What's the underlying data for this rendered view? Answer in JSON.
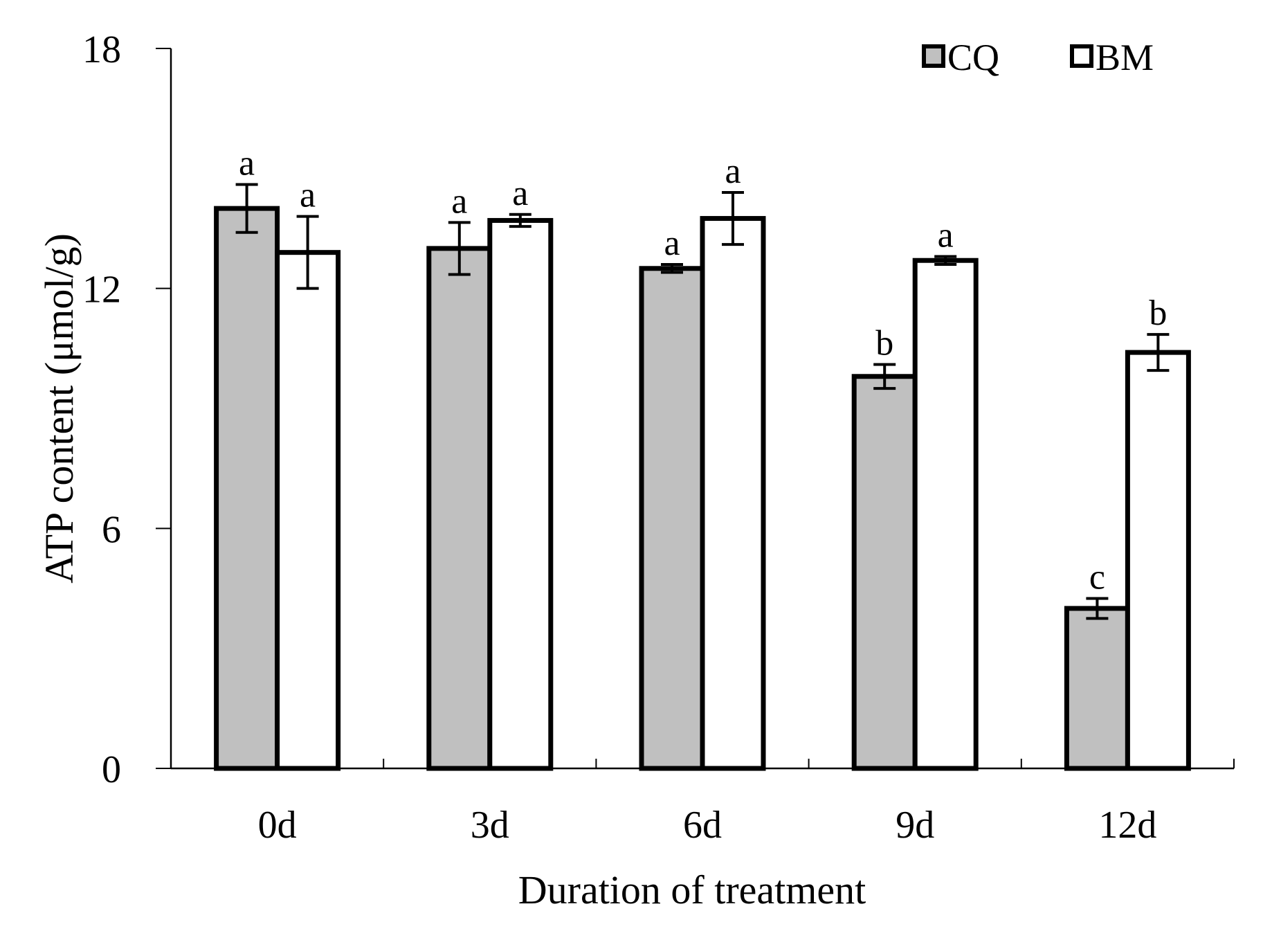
{
  "chart_data": {
    "type": "bar",
    "title": "",
    "xlabel": "Duration of treatment",
    "ylabel": "ATP content (μmol/g)",
    "ylim": [
      0,
      18
    ],
    "yticks": [
      0,
      6,
      12,
      18
    ],
    "grid": false,
    "legend_position": "top-right",
    "categories": [
      "0d",
      "3d",
      "6d",
      "9d",
      "12d"
    ],
    "series": [
      {
        "name": "CQ",
        "color": "#c0c0c0",
        "values": [
          14.0,
          13.0,
          12.5,
          9.8,
          4.0
        ],
        "errors": [
          0.6,
          0.65,
          0.1,
          0.3,
          0.25
        ],
        "labels": [
          "a",
          "a",
          "a",
          "b",
          "c"
        ]
      },
      {
        "name": "BM",
        "color": "#ffffff",
        "values": [
          12.9,
          13.7,
          13.75,
          12.7,
          10.4
        ],
        "errors": [
          0.9,
          0.15,
          0.65,
          0.1,
          0.45
        ],
        "labels": [
          "a",
          "a",
          "a",
          "a",
          "b"
        ]
      }
    ]
  }
}
